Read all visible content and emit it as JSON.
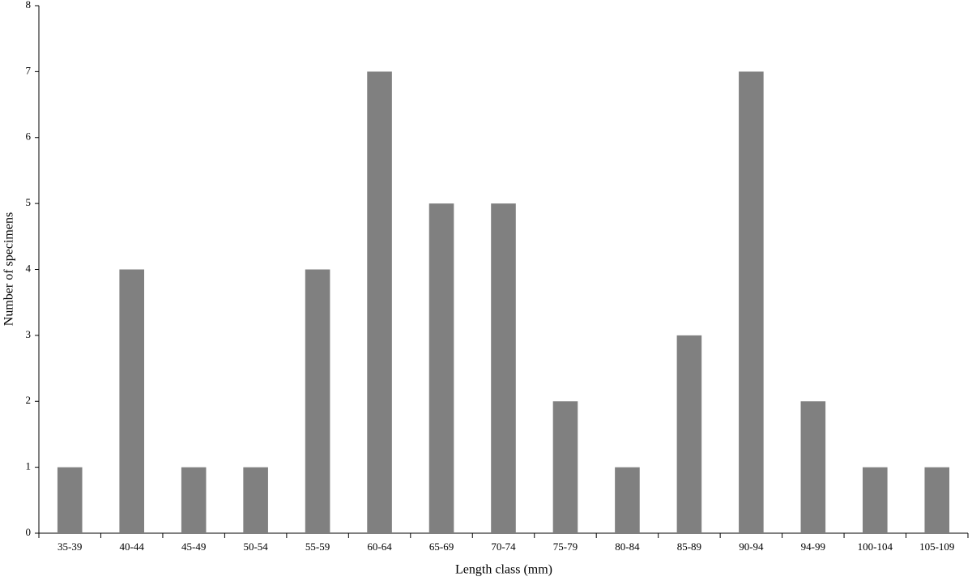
{
  "chart_data": {
    "type": "bar",
    "x_label": "Length class (mm)",
    "y_label": "Number of specimens",
    "categories": [
      "35-39",
      "40-44",
      "45-49",
      "50-54",
      "55-59",
      "60-64",
      "65-69",
      "70-74",
      "75-79",
      "80-84",
      "85-89",
      "90-94",
      "94-99",
      "100-104",
      "105-109"
    ],
    "values": [
      1,
      4,
      1,
      1,
      4,
      7,
      5,
      5,
      2,
      1,
      3,
      7,
      2,
      1,
      1
    ],
    "color": "#808080",
    "ylim": [
      0,
      8
    ],
    "yticks": [
      0,
      1,
      2,
      3,
      4,
      5,
      6,
      7,
      8
    ],
    "grid": false
  }
}
